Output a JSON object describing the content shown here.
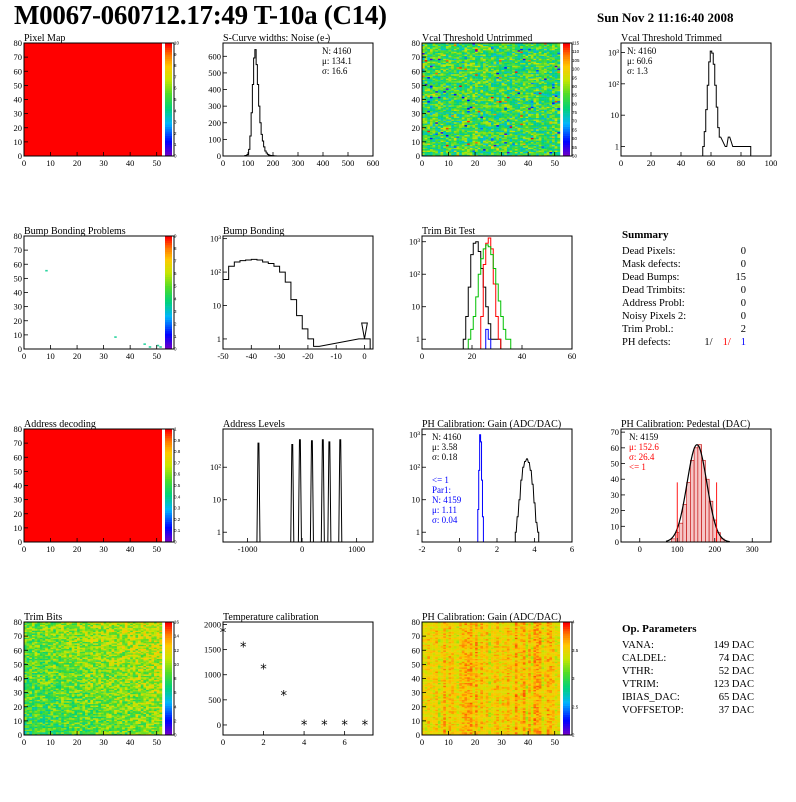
{
  "header": {
    "title": "M0067-060712.17:49 T-10a (C14)",
    "datetime": "Sun Nov  2 11:16:40 2008"
  },
  "colors": {
    "frame": "#000000",
    "blue": "#0000ff",
    "red": "#ff0000",
    "green": "#00c000",
    "bg": "#ffffff"
  },
  "chart_data": [
    {
      "id": "pixel-map",
      "type": "heatmap",
      "title": "Pixel Map",
      "xlim": [
        0,
        52
      ],
      "ylim": [
        0,
        80
      ],
      "xticks": [
        "0",
        "10",
        "20",
        "30",
        "40",
        "50"
      ],
      "yticks": [
        "0",
        "10",
        "20",
        "30",
        "40",
        "50",
        "60",
        "70",
        "80"
      ],
      "zticks": [
        "0",
        "1",
        "2",
        "3",
        "4",
        "5",
        "6",
        "7",
        "8",
        "9",
        "10"
      ],
      "fill": "uniform max (red)"
    },
    {
      "id": "scurve-noise",
      "type": "bar",
      "title": "S-Curve widths: Noise (e )",
      "xlim": [
        0,
        600
      ],
      "ylim": [
        0,
        680
      ],
      "xticks": [
        "0",
        "100",
        "200",
        "300",
        "400",
        "500",
        "600"
      ],
      "yticks": [
        "0",
        "100",
        "200",
        "300",
        "400",
        "500",
        "600"
      ],
      "stats": [
        "N: 4160",
        "μ: 134.1",
        "σ: 16.6"
      ],
      "x": [
        90,
        100,
        105,
        110,
        115,
        120,
        125,
        130,
        135,
        140,
        145,
        150,
        155,
        160,
        165,
        170,
        175,
        180,
        185,
        190,
        200,
        210
      ],
      "values": [
        3,
        10,
        40,
        120,
        260,
        430,
        590,
        640,
        550,
        430,
        300,
        200,
        130,
        90,
        55,
        30,
        18,
        10,
        6,
        3,
        2,
        1
      ]
    },
    {
      "id": "vcal-untrimmed",
      "type": "heatmap",
      "title": "Vcal Threshold Untrimmed",
      "xlim": [
        0,
        52
      ],
      "ylim": [
        0,
        80
      ],
      "xticks": [
        "0",
        "10",
        "20",
        "30",
        "40",
        "50"
      ],
      "yticks": [
        "0",
        "10",
        "20",
        "30",
        "40",
        "50",
        "60",
        "70",
        "80"
      ],
      "zticks": [
        "50",
        "55",
        "60",
        "65",
        "70",
        "75",
        "80",
        "85",
        "90",
        "95",
        "100",
        "105",
        "110",
        "115"
      ]
    },
    {
      "id": "vcal-trimmed",
      "type": "bar",
      "title": "Vcal Threshold Trimmed",
      "scale": "log",
      "xlim": [
        0,
        100
      ],
      "ylim": [
        0.5,
        2000
      ],
      "xticks": [
        "0",
        "20",
        "40",
        "60",
        "80",
        "100"
      ],
      "yticks": [
        "1",
        "10",
        "10²",
        "10³"
      ],
      "stats": [
        "N: 4160",
        "μ: 60.6",
        "σ:  1.3"
      ],
      "x": [
        55,
        56,
        57,
        58,
        59,
        60,
        61,
        62,
        63,
        64,
        65,
        66,
        70,
        72,
        75,
        78,
        86
      ],
      "values": [
        1,
        3,
        15,
        90,
        500,
        1100,
        950,
        420,
        90,
        18,
        4,
        2,
        1,
        2,
        1,
        1,
        1
      ]
    },
    {
      "id": "bump-bonding-problems",
      "type": "scatter",
      "title": "Bump Bonding Problems",
      "xlim": [
        0,
        52
      ],
      "ylim": [
        0,
        80
      ],
      "xticks": [
        "0",
        "10",
        "20",
        "30",
        "40",
        "50"
      ],
      "yticks": [
        "0",
        "10",
        "20",
        "30",
        "40",
        "50",
        "60",
        "70",
        "80"
      ],
      "zticks": [
        "0",
        "1",
        "2",
        "3",
        "4",
        "5",
        "6",
        "7",
        "8",
        "9"
      ],
      "points": [
        [
          8,
          55
        ],
        [
          34,
          8
        ],
        [
          45,
          3
        ],
        [
          47,
          1
        ],
        [
          50,
          2
        ],
        [
          51,
          1
        ]
      ]
    },
    {
      "id": "bump-bonding",
      "type": "bar",
      "title": "Bump Bonding",
      "scale": "log",
      "xlim": [
        -50,
        3
      ],
      "ylim": [
        0.5,
        1200
      ],
      "xticks": [
        "-50",
        "-40",
        "-30",
        "-20",
        "-10",
        "0"
      ],
      "yticks": [
        "1",
        "10",
        "10²",
        "10³"
      ],
      "x": [
        -49,
        -47,
        -45,
        -43,
        -41,
        -39,
        -37,
        -35,
        -33,
        -31,
        -29,
        -27,
        -25,
        -23,
        -21,
        -19,
        -17,
        -1,
        0,
        1
      ],
      "values": [
        60,
        150,
        200,
        220,
        230,
        240,
        230,
        200,
        180,
        150,
        100,
        50,
        15,
        5,
        2,
        1,
        0.6,
        1,
        3,
        1
      ]
    },
    {
      "id": "trim-bit-test",
      "type": "line",
      "title": "Trim Bit Test",
      "scale": "log",
      "xlim": [
        0,
        60
      ],
      "ylim": [
        0.5,
        1500
      ],
      "xticks": [
        "0",
        "20",
        "40",
        "60"
      ],
      "yticks": [
        "1",
        "10",
        "10²",
        "10³"
      ],
      "series": [
        {
          "color": "#000000",
          "x": [
            17,
            18,
            19,
            20,
            21,
            22,
            23,
            24,
            25,
            26,
            27,
            28,
            29,
            30,
            31
          ],
          "values": [
            1,
            5,
            40,
            400,
            900,
            1000,
            500,
            150,
            40,
            10,
            3,
            1,
            1,
            1,
            1
          ]
        },
        {
          "color": "#ff0000",
          "x": [
            24,
            25,
            26,
            27,
            28,
            29,
            30,
            31
          ],
          "values": [
            5,
            200,
            900,
            1300,
            600,
            50,
            5,
            1
          ]
        },
        {
          "color": "#00c000",
          "x": [
            19,
            20,
            21,
            22,
            23,
            24,
            25,
            26,
            27,
            28,
            29,
            30,
            31,
            32,
            33,
            34,
            35
          ],
          "values": [
            1,
            2,
            5,
            20,
            100,
            300,
            600,
            800,
            700,
            400,
            150,
            50,
            15,
            5,
            2,
            1,
            1
          ]
        },
        {
          "color": "#0000ff",
          "x": [
            26,
            27
          ],
          "values": [
            2,
            1
          ]
        }
      ]
    },
    {
      "id": "summary",
      "type": "table",
      "title": "Summary",
      "rows": [
        {
          "label": "Dead Pixels:",
          "value": "0"
        },
        {
          "label": "Mask defects:",
          "value": "0"
        },
        {
          "label": "Dead Bumps:",
          "value": "15"
        },
        {
          "label": "Dead Trimbits:",
          "value": "0"
        },
        {
          "label": "Address Probl:",
          "value": "0"
        },
        {
          "label": "Noisy Pixels 2:",
          "value": "0"
        },
        {
          "label": "Trim Probl.:",
          "value": "2"
        }
      ],
      "ph_defects": {
        "label": "PH defects:",
        "values": [
          "1/",
          "1/",
          "1"
        ],
        "colors": [
          "#000000",
          "#ff0000",
          "#0000ff"
        ]
      }
    },
    {
      "id": "address-decoding",
      "type": "heatmap",
      "title": "Address decoding",
      "xlim": [
        0,
        52
      ],
      "ylim": [
        0,
        80
      ],
      "xticks": [
        "0",
        "10",
        "20",
        "30",
        "40",
        "50"
      ],
      "yticks": [
        "0",
        "10",
        "20",
        "30",
        "40",
        "50",
        "60",
        "70",
        "80"
      ],
      "zticks": [
        "0",
        "0.1",
        "0.2",
        "0.3",
        "0.4",
        "0.5",
        "0.6",
        "0.7",
        "0.8",
        "0.9",
        "1"
      ],
      "fill": "uniform max (red)"
    },
    {
      "id": "address-levels",
      "type": "bar",
      "title": "Address Levels",
      "scale": "log",
      "xlim": [
        -1450,
        1300
      ],
      "ylim": [
        0.5,
        1500
      ],
      "xticks": [
        "-1000",
        "0",
        "1000"
      ],
      "yticks": [
        "1",
        "10",
        "10²"
      ],
      "x": [
        -800,
        -180,
        -40,
        180,
        380,
        500,
        700
      ],
      "values": [
        550,
        500,
        700,
        650,
        700,
        600,
        700
      ]
    },
    {
      "id": "ph-gain",
      "type": "bar",
      "title": "PH Calibration: Gain (ADC/DAC)",
      "scale": "log",
      "xlim": [
        -2,
        6
      ],
      "ylim": [
        0.5,
        1500
      ],
      "xticks": [
        "-2",
        "0",
        "2",
        "4",
        "6"
      ],
      "yticks": [
        "1",
        "10",
        "10²",
        "10³"
      ],
      "stats": [
        "N: 4160",
        "μ: 3.58",
        "σ: 0.18"
      ],
      "fit_stats": [
        "<= 1",
        "Par1:",
        "N: 4159",
        "μ: 1.11",
        "σ: 0.04"
      ],
      "series": [
        {
          "color": "#000000",
          "x": [
            3.0,
            3.1,
            3.2,
            3.3,
            3.4,
            3.5,
            3.6,
            3.7,
            3.8,
            3.9,
            4.0,
            4.1,
            4.2
          ],
          "values": [
            1,
            3,
            10,
            40,
            100,
            150,
            180,
            140,
            80,
            30,
            8,
            2,
            1
          ]
        },
        {
          "color": "#0000ff",
          "x": [
            1.0,
            1.05,
            1.1,
            1.15,
            1.2,
            1.25
          ],
          "values": [
            5,
            80,
            1000,
            600,
            40,
            3
          ]
        }
      ]
    },
    {
      "id": "ph-pedestal",
      "type": "bar",
      "title": "PH Calibration: Pedestal (DAC)",
      "xlim": [
        -50,
        350
      ],
      "ylim": [
        0,
        72
      ],
      "xticks": [
        "0",
        "100",
        "200",
        "300"
      ],
      "yticks": [
        "0",
        "10",
        "20",
        "30",
        "40",
        "50",
        "60",
        "70"
      ],
      "stats": [
        "N: 4159"
      ],
      "fit_stats": [
        "μ: 152.6",
        "σ: 26.4",
        "<= 1"
      ],
      "x": [
        90,
        100,
        110,
        120,
        130,
        140,
        150,
        160,
        170,
        180,
        190,
        200,
        210,
        220
      ],
      "values": [
        2,
        6,
        12,
        24,
        38,
        52,
        60,
        62,
        52,
        40,
        26,
        14,
        6,
        2
      ],
      "markers": [
        100,
        205
      ]
    },
    {
      "id": "trim-bits",
      "type": "heatmap",
      "title": "Trim Bits",
      "xlim": [
        0,
        52
      ],
      "ylim": [
        0,
        80
      ],
      "xticks": [
        "0",
        "10",
        "20",
        "30",
        "40",
        "50"
      ],
      "yticks": [
        "0",
        "10",
        "20",
        "30",
        "40",
        "50",
        "60",
        "70",
        "80"
      ],
      "zticks": [
        "0",
        "2",
        "4",
        "6",
        "8",
        "10",
        "12",
        "14",
        "16"
      ]
    },
    {
      "id": "temperature-calibration",
      "type": "scatter",
      "title": "Temperature calibration",
      "xlim": [
        0,
        7.4
      ],
      "ylim": [
        -200,
        2050
      ],
      "xticks": [
        "0",
        "2",
        "4",
        "6"
      ],
      "yticks": [
        "0",
        "500",
        "1000",
        "1500",
        "2000"
      ],
      "x": [
        0,
        1,
        2,
        3,
        4,
        5,
        6,
        7
      ],
      "values": [
        1830,
        1540,
        1100,
        580,
        -10,
        -10,
        -10,
        -10
      ]
    },
    {
      "id": "ph-gain-map",
      "type": "heatmap",
      "title": "PH Calibration: Gain (ADC/DAC)",
      "xlim": [
        0,
        52
      ],
      "ylim": [
        0,
        80
      ],
      "xticks": [
        "0",
        "10",
        "20",
        "30",
        "40",
        "50"
      ],
      "yticks": [
        "0",
        "10",
        "20",
        "30",
        "40",
        "50",
        "60",
        "70",
        "80"
      ],
      "zticks": [
        "2",
        "2.5",
        "3",
        "3.5",
        "4"
      ]
    },
    {
      "id": "op-parameters",
      "type": "table",
      "title": "Op. Parameters",
      "rows": [
        {
          "label": "VANA:",
          "value": "149 DAC"
        },
        {
          "label": "CALDEL:",
          "value": "74 DAC"
        },
        {
          "label": "VTHR:",
          "value": "52 DAC"
        },
        {
          "label": "VTRIM:",
          "value": "123 DAC"
        },
        {
          "label": "IBIAS_DAC:",
          "value": "65 DAC"
        },
        {
          "label": "VOFFSETOP:",
          "value": "37 DAC"
        }
      ]
    }
  ]
}
